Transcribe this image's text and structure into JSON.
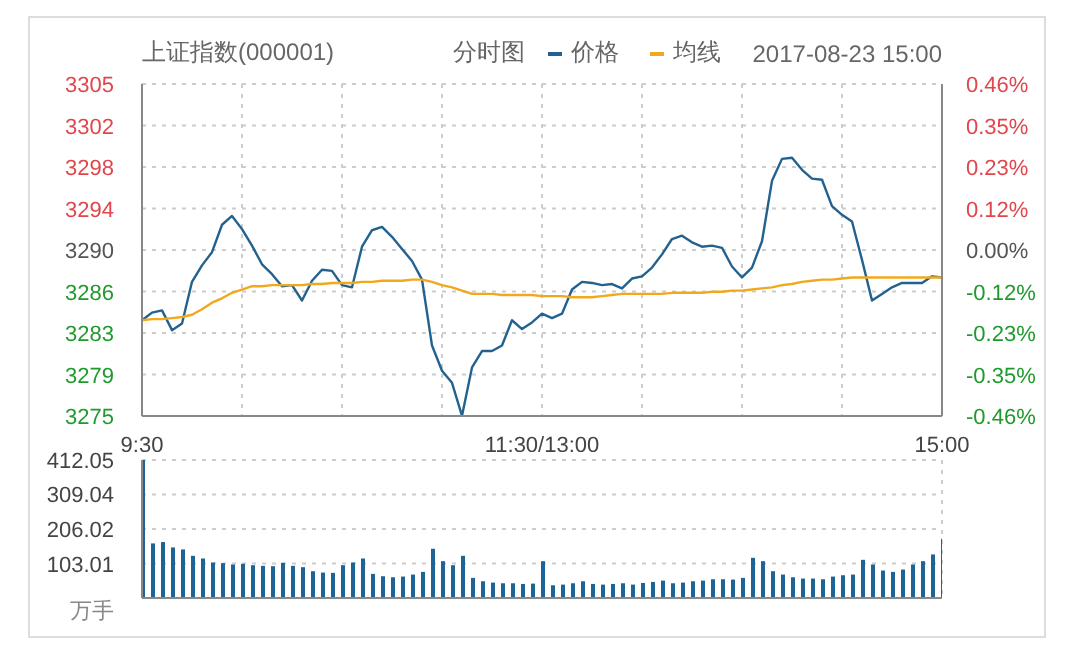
{
  "chart_data": [
    {
      "type": "line",
      "title": "上证指数(000001)",
      "annotations": [
        "分时图",
        "2017-08-23 15:00"
      ],
      "legend": "top",
      "grid": true,
      "line_style": "solid",
      "marker": "none",
      "categories": [
        "9:30",
        null,
        null,
        null,
        null,
        null,
        null,
        null,
        null,
        null,
        null,
        null,
        null,
        null,
        null,
        null,
        null,
        null,
        null,
        null,
        null,
        null,
        null,
        null,
        null,
        null,
        null,
        null,
        null,
        null,
        null,
        null,
        null,
        null,
        null,
        null,
        null,
        null,
        null,
        null,
        "11:30/13:00",
        null,
        null,
        null,
        null,
        null,
        null,
        null,
        null,
        null,
        null,
        null,
        null,
        null,
        null,
        null,
        null,
        null,
        null,
        null,
        null,
        null,
        null,
        null,
        null,
        null,
        null,
        null,
        null,
        null,
        null,
        null,
        null,
        null,
        null,
        null,
        null,
        null,
        null,
        null,
        "15:00"
      ],
      "ylim": [
        3275.08,
        3305.32
      ],
      "yticks": [
        {
          "value": 3275.08,
          "label": "3275"
        },
        {
          "value": 3278.86,
          "label": "3279"
        },
        {
          "value": 3282.64,
          "label": "3283"
        },
        {
          "value": 3286.42,
          "label": "3286"
        },
        {
          "value": 3290.2,
          "label": "3290"
        },
        {
          "value": 3293.98,
          "label": "3294"
        },
        {
          "value": 3297.76,
          "label": "3298"
        },
        {
          "value": 3301.54,
          "label": "3302"
        },
        {
          "value": 3305.32,
          "label": "3305"
        }
      ],
      "y2lim": [
        -0.46,
        0.46
      ],
      "y2ticks": [
        {
          "value": -0.46,
          "label": "-0.46%"
        },
        {
          "value": -0.345,
          "label": "-0.35%"
        },
        {
          "value": -0.23,
          "label": "-0.23%"
        },
        {
          "value": -0.115,
          "label": "-0.12%"
        },
        {
          "value": 0,
          "label": "0.00%"
        },
        {
          "value": 0.115,
          "label": "0.12%"
        },
        {
          "value": 0.23,
          "label": "0.23%"
        },
        {
          "value": 0.345,
          "label": "0.35%"
        },
        {
          "value": 0.46,
          "label": "0.46%"
        }
      ],
      "series": [
        {
          "name": "价格",
          "color": "#23628f",
          "values": [
            3283.8,
            3284.5,
            3284.7,
            3282.9,
            3283.5,
            3287.3,
            3288.8,
            3290.0,
            3292.5,
            3293.3,
            3292.1,
            3290.6,
            3288.9,
            3288.0,
            3286.9,
            3287.0,
            3285.6,
            3287.4,
            3288.4,
            3288.3,
            3287.0,
            3286.8,
            3290.5,
            3292.0,
            3292.3,
            3291.4,
            3290.3,
            3289.2,
            3287.5,
            3281.5,
            3279.2,
            3278.1,
            3275.1,
            3279.5,
            3281.0,
            3281.0,
            3281.5,
            3283.8,
            3283.0,
            3283.6,
            3284.4,
            3284.0,
            3284.4,
            3286.6,
            3287.3,
            3287.2,
            3287.0,
            3287.1,
            3286.7,
            3287.6,
            3287.8,
            3288.6,
            3289.8,
            3291.2,
            3291.5,
            3290.9,
            3290.5,
            3290.6,
            3290.4,
            3288.7,
            3287.7,
            3288.6,
            3291.0,
            3296.5,
            3298.5,
            3298.6,
            3297.5,
            3296.7,
            3296.6,
            3294.2,
            3293.4,
            3292.8,
            3289.3,
            3285.6,
            3286.2,
            3286.8,
            3287.2,
            3287.2,
            3287.2,
            3287.8,
            3287.7
          ]
        },
        {
          "name": "均线",
          "color": "#f2a81d",
          "values": [
            3283.8,
            3283.9,
            3283.9,
            3284.0,
            3284.1,
            3284.3,
            3284.8,
            3285.4,
            3285.8,
            3286.3,
            3286.6,
            3286.9,
            3286.9,
            3287.0,
            3287.0,
            3287.0,
            3287.0,
            3287.1,
            3287.1,
            3287.2,
            3287.2,
            3287.2,
            3287.3,
            3287.3,
            3287.4,
            3287.4,
            3287.4,
            3287.5,
            3287.5,
            3287.3,
            3287.0,
            3286.8,
            3286.5,
            3286.2,
            3286.2,
            3286.2,
            3286.1,
            3286.1,
            3286.1,
            3286.1,
            3286.0,
            3286.0,
            3286.0,
            3285.9,
            3285.9,
            3285.9,
            3286.0,
            3286.1,
            3286.2,
            3286.2,
            3286.2,
            3286.2,
            3286.2,
            3286.3,
            3286.3,
            3286.3,
            3286.3,
            3286.4,
            3286.4,
            3286.5,
            3286.5,
            3286.6,
            3286.7,
            3286.8,
            3287.0,
            3287.1,
            3287.3,
            3287.4,
            3287.5,
            3287.5,
            3287.6,
            3287.7,
            3287.7,
            3287.7,
            3287.7,
            3287.7,
            3287.7,
            3287.7,
            3287.7,
            3287.7,
            3287.7
          ]
        }
      ]
    },
    {
      "type": "bar",
      "color": "#1e6496",
      "grid": true,
      "tick_labels": "y",
      "categories": [
        null,
        null,
        null,
        null,
        null,
        null,
        null,
        null,
        null,
        null,
        null,
        null,
        null,
        null,
        null,
        null,
        null,
        null,
        null,
        null,
        null,
        null,
        null,
        null,
        null,
        null,
        null,
        null,
        null,
        null,
        null,
        null,
        null,
        null,
        null,
        null,
        null,
        null,
        null,
        null,
        null,
        null,
        null,
        null,
        null,
        null,
        null,
        null,
        null,
        null,
        null,
        null,
        null,
        null,
        null,
        null,
        null,
        null,
        null,
        null,
        null,
        null,
        null,
        null,
        null,
        null,
        null,
        null,
        null,
        null,
        null,
        null,
        null,
        null,
        null,
        null,
        null,
        null,
        null,
        null,
        null
      ],
      "ylim": [
        0,
        412.05
      ],
      "yticks": [
        {
          "value": 0,
          "label": "万手"
        },
        103.01,
        206.02,
        309.04,
        412.05
      ],
      "values": [
        412,
        163,
        167,
        151,
        145,
        126,
        118,
        106,
        104,
        100,
        102,
        98,
        96,
        95,
        105,
        96,
        92,
        80,
        76,
        75,
        98,
        106,
        118,
        72,
        65,
        62,
        64,
        70,
        78,
        147,
        110,
        98,
        126,
        60,
        50,
        46,
        44,
        44,
        42,
        43,
        110,
        38,
        40,
        44,
        50,
        42,
        40,
        42,
        44,
        40,
        45,
        48,
        52,
        44,
        46,
        50,
        52,
        56,
        56,
        55,
        60,
        120,
        110,
        80,
        70,
        62,
        58,
        58,
        56,
        64,
        68,
        70,
        114,
        100,
        82,
        78,
        85,
        100,
        110,
        130,
        177
      ]
    }
  ]
}
